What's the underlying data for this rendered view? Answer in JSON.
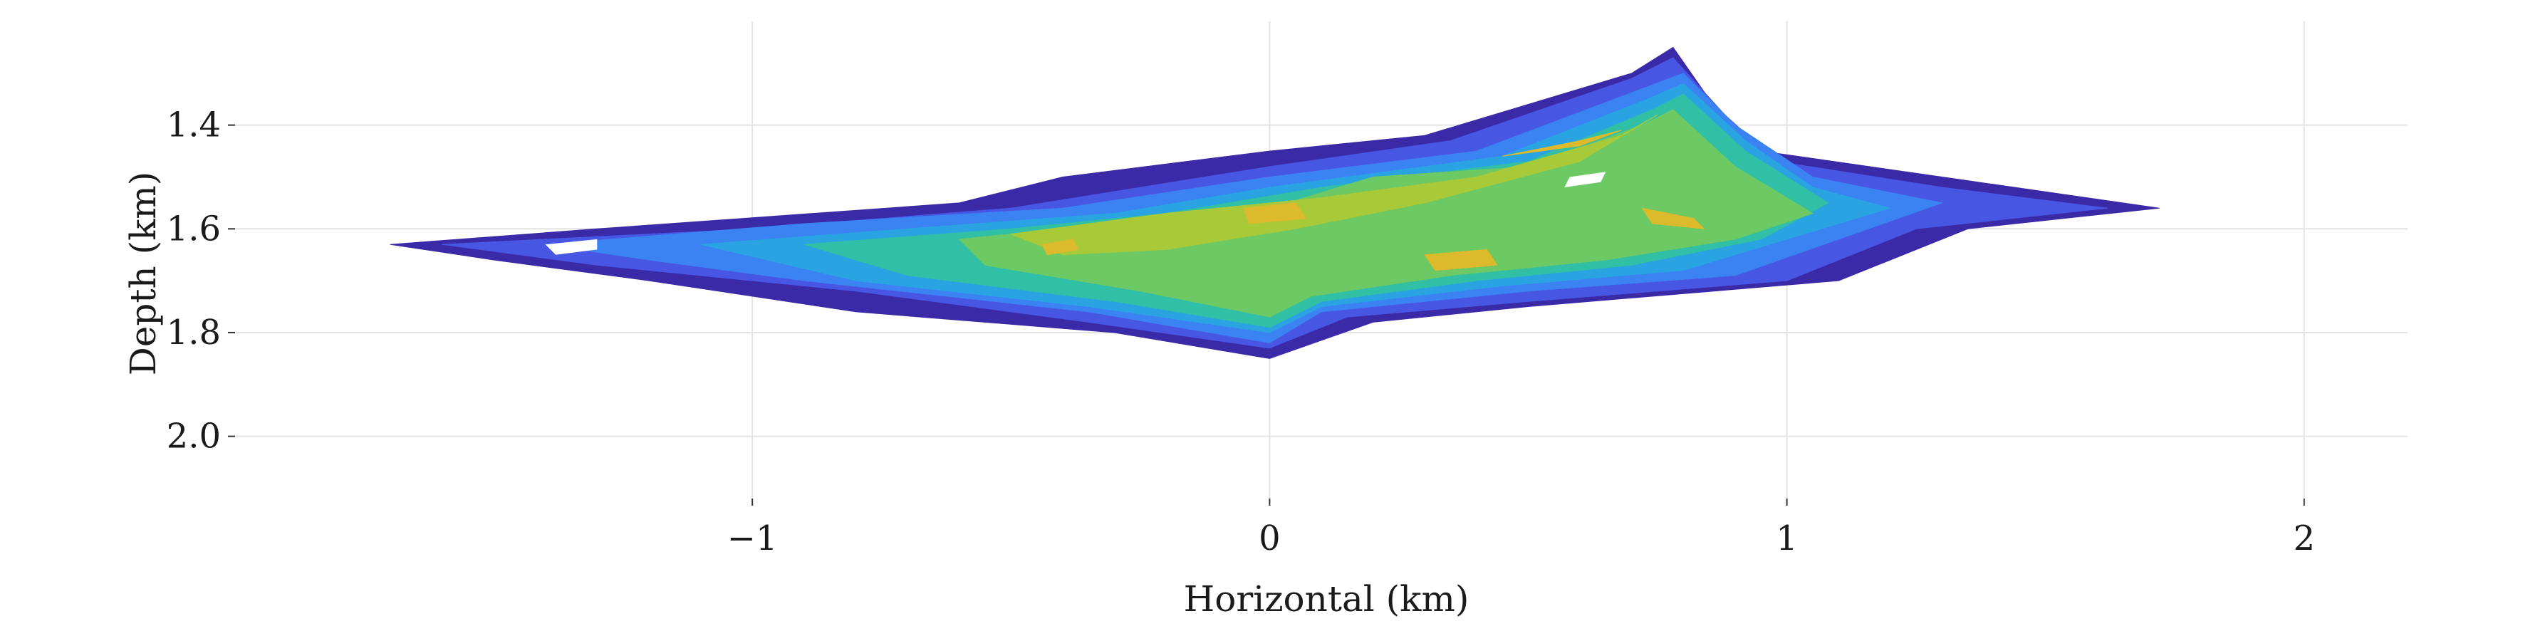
{
  "chart_data": {
    "type": "heatmap",
    "title": "",
    "xlabel": "Horizontal (km)",
    "ylabel": "Depth (km)",
    "xlim": [
      -2.0,
      2.2
    ],
    "ylim": [
      2.12,
      1.2
    ],
    "y_inverted": true,
    "xticks": [
      -1,
      0,
      1,
      2
    ],
    "xtick_labels": [
      "−1",
      "0",
      "1",
      "2"
    ],
    "yticks": [
      1.4,
      1.6,
      1.8,
      2.0
    ],
    "ytick_labels": [
      "1.4",
      "1.6",
      "1.8",
      "2.0"
    ],
    "grid": true,
    "legend": "none",
    "colormap": [
      "#3a2aa8",
      "#4856e4",
      "#3b82f2",
      "#2aa3e3",
      "#31bfa5",
      "#6cc964",
      "#a8c938",
      "#ddb92c"
    ],
    "levels": 8,
    "regions": [
      {
        "level": 0,
        "polygon": [
          [
            -1.7,
            1.63
          ],
          [
            -1.3,
            1.6
          ],
          [
            -0.6,
            1.55
          ],
          [
            -0.4,
            1.5
          ],
          [
            0.0,
            1.45
          ],
          [
            0.3,
            1.42
          ],
          [
            0.7,
            1.3
          ],
          [
            0.78,
            1.25
          ],
          [
            0.85,
            1.35
          ],
          [
            0.95,
            1.45
          ],
          [
            1.3,
            1.5
          ],
          [
            1.72,
            1.56
          ],
          [
            1.35,
            1.6
          ],
          [
            1.1,
            1.7
          ],
          [
            0.5,
            1.75
          ],
          [
            0.2,
            1.78
          ],
          [
            0.0,
            1.85
          ],
          [
            -0.3,
            1.8
          ],
          [
            -0.8,
            1.76
          ],
          [
            -1.2,
            1.7
          ],
          [
            -1.5,
            1.66
          ]
        ]
      },
      {
        "level": 1,
        "polygon": [
          [
            -1.6,
            1.63
          ],
          [
            -1.0,
            1.6
          ],
          [
            -0.5,
            1.56
          ],
          [
            0.0,
            1.48
          ],
          [
            0.35,
            1.43
          ],
          [
            0.7,
            1.31
          ],
          [
            0.78,
            1.27
          ],
          [
            0.88,
            1.38
          ],
          [
            0.98,
            1.47
          ],
          [
            1.3,
            1.52
          ],
          [
            1.62,
            1.56
          ],
          [
            1.25,
            1.6
          ],
          [
            1.0,
            1.7
          ],
          [
            0.5,
            1.74
          ],
          [
            0.15,
            1.77
          ],
          [
            0.0,
            1.83
          ],
          [
            -0.35,
            1.78
          ],
          [
            -0.8,
            1.72
          ],
          [
            -1.3,
            1.67
          ]
        ]
      },
      {
        "level": 2,
        "polygon": [
          [
            -1.4,
            1.63
          ],
          [
            -0.9,
            1.59
          ],
          [
            -0.4,
            1.56
          ],
          [
            0.0,
            1.5
          ],
          [
            0.4,
            1.45
          ],
          [
            0.72,
            1.33
          ],
          [
            0.8,
            1.3
          ],
          [
            0.9,
            1.4
          ],
          [
            1.05,
            1.5
          ],
          [
            1.3,
            1.55
          ],
          [
            1.1,
            1.62
          ],
          [
            0.9,
            1.69
          ],
          [
            0.5,
            1.72
          ],
          [
            0.1,
            1.76
          ],
          [
            0.0,
            1.82
          ],
          [
            -0.35,
            1.76
          ],
          [
            -0.9,
            1.7
          ],
          [
            -1.2,
            1.66
          ]
        ]
      },
      {
        "level": 3,
        "polygon": [
          [
            -1.1,
            1.63
          ],
          [
            -0.7,
            1.6
          ],
          [
            -0.3,
            1.57
          ],
          [
            0.0,
            1.52
          ],
          [
            0.45,
            1.46
          ],
          [
            0.73,
            1.35
          ],
          [
            0.8,
            1.32
          ],
          [
            0.92,
            1.43
          ],
          [
            1.05,
            1.52
          ],
          [
            1.2,
            1.56
          ],
          [
            1.0,
            1.62
          ],
          [
            0.8,
            1.68
          ],
          [
            0.45,
            1.71
          ],
          [
            0.1,
            1.75
          ],
          [
            0.0,
            1.8
          ],
          [
            -0.35,
            1.75
          ],
          [
            -0.8,
            1.7
          ]
        ]
      },
      {
        "level": 4,
        "polygon": [
          [
            -0.9,
            1.63
          ],
          [
            -0.5,
            1.6
          ],
          [
            -0.2,
            1.57
          ],
          [
            0.1,
            1.52
          ],
          [
            0.5,
            1.47
          ],
          [
            0.74,
            1.37
          ],
          [
            0.8,
            1.34
          ],
          [
            0.92,
            1.45
          ],
          [
            1.08,
            1.55
          ],
          [
            0.95,
            1.62
          ],
          [
            0.7,
            1.67
          ],
          [
            0.4,
            1.7
          ],
          [
            0.1,
            1.74
          ],
          [
            0.0,
            1.79
          ],
          [
            -0.3,
            1.74
          ],
          [
            -0.7,
            1.69
          ]
        ]
      },
      {
        "level": 5,
        "polygon": [
          [
            -0.6,
            1.62
          ],
          [
            -0.3,
            1.59
          ],
          [
            0.0,
            1.56
          ],
          [
            0.2,
            1.5
          ],
          [
            0.5,
            1.48
          ],
          [
            0.72,
            1.4
          ],
          [
            0.78,
            1.37
          ],
          [
            0.9,
            1.48
          ],
          [
            1.05,
            1.57
          ],
          [
            0.9,
            1.62
          ],
          [
            0.65,
            1.66
          ],
          [
            0.35,
            1.69
          ],
          [
            0.08,
            1.73
          ],
          [
            0.0,
            1.77
          ],
          [
            -0.25,
            1.72
          ],
          [
            -0.55,
            1.67
          ]
        ]
      },
      {
        "level": 6,
        "polygon": [
          [
            -0.5,
            1.61
          ],
          [
            -0.2,
            1.57
          ],
          [
            0.1,
            1.54
          ],
          [
            0.4,
            1.5
          ],
          [
            0.68,
            1.42
          ],
          [
            0.75,
            1.38
          ],
          [
            0.6,
            1.47
          ],
          [
            0.3,
            1.55
          ],
          [
            0.05,
            1.6
          ],
          [
            -0.2,
            1.64
          ],
          [
            -0.4,
            1.65
          ]
        ]
      },
      {
        "level": 7,
        "polygon": [
          [
            -0.05,
            1.56
          ],
          [
            0.05,
            1.55
          ],
          [
            0.07,
            1.58
          ],
          [
            -0.04,
            1.59
          ]
        ]
      },
      {
        "level": 7,
        "polygon": [
          [
            0.45,
            1.46
          ],
          [
            0.6,
            1.43
          ],
          [
            0.68,
            1.41
          ],
          [
            0.6,
            1.44
          ]
        ]
      },
      {
        "level": 7,
        "polygon": [
          [
            0.72,
            1.56
          ],
          [
            0.82,
            1.58
          ],
          [
            0.84,
            1.6
          ],
          [
            0.74,
            1.59
          ]
        ]
      },
      {
        "level": 7,
        "polygon": [
          [
            0.3,
            1.65
          ],
          [
            0.42,
            1.64
          ],
          [
            0.44,
            1.67
          ],
          [
            0.32,
            1.68
          ]
        ]
      },
      {
        "level": 7,
        "polygon": [
          [
            -0.44,
            1.63
          ],
          [
            -0.38,
            1.62
          ],
          [
            -0.37,
            1.64
          ],
          [
            -0.43,
            1.65
          ]
        ]
      }
    ],
    "holes": [
      {
        "polygon": [
          [
            0.58,
            1.5
          ],
          [
            0.65,
            1.49
          ],
          [
            0.64,
            1.51
          ],
          [
            0.57,
            1.52
          ]
        ]
      },
      {
        "polygon": [
          [
            -1.4,
            1.63
          ],
          [
            -1.3,
            1.62
          ],
          [
            -1.3,
            1.64
          ],
          [
            -1.38,
            1.65
          ]
        ]
      }
    ]
  }
}
